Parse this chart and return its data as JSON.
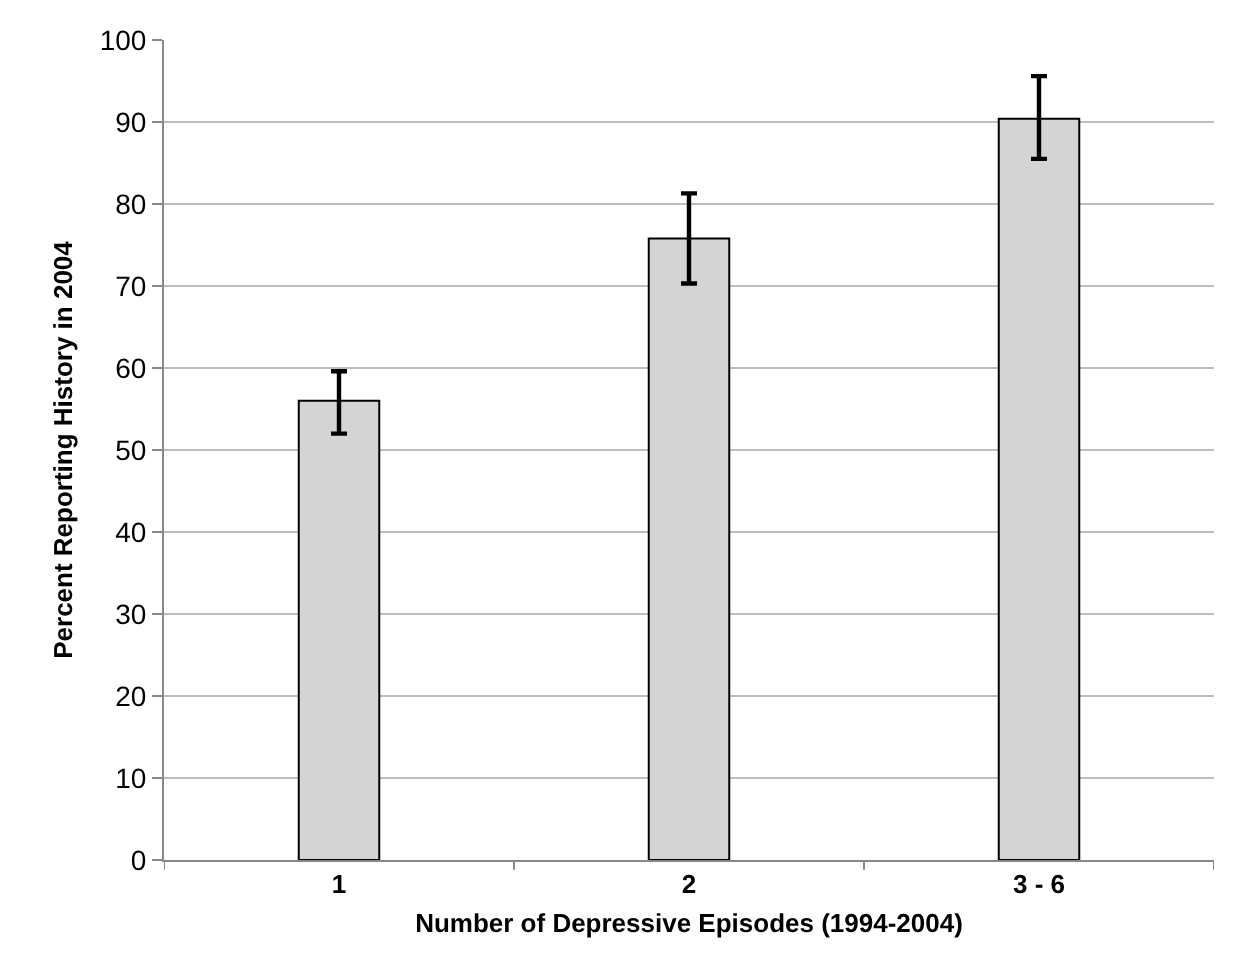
{
  "chart_data": {
    "type": "bar",
    "xlabel": "Number of Depressive Episodes (1994-2004)",
    "ylabel": "Percent Reporting History in 2004",
    "categories": [
      "1",
      "2",
      "3 - 6"
    ],
    "values": [
      56,
      75.8,
      90.4
    ],
    "errors": [
      [
        52,
        59.6
      ],
      [
        70.3,
        81.3
      ],
      [
        85.5,
        95.6
      ]
    ],
    "color": "#d4d4d4",
    "ylim": [
      0,
      100
    ],
    "yticks": [
      0,
      10,
      20,
      30,
      40,
      50,
      60,
      70,
      80,
      90,
      100
    ],
    "grid": "y"
  }
}
